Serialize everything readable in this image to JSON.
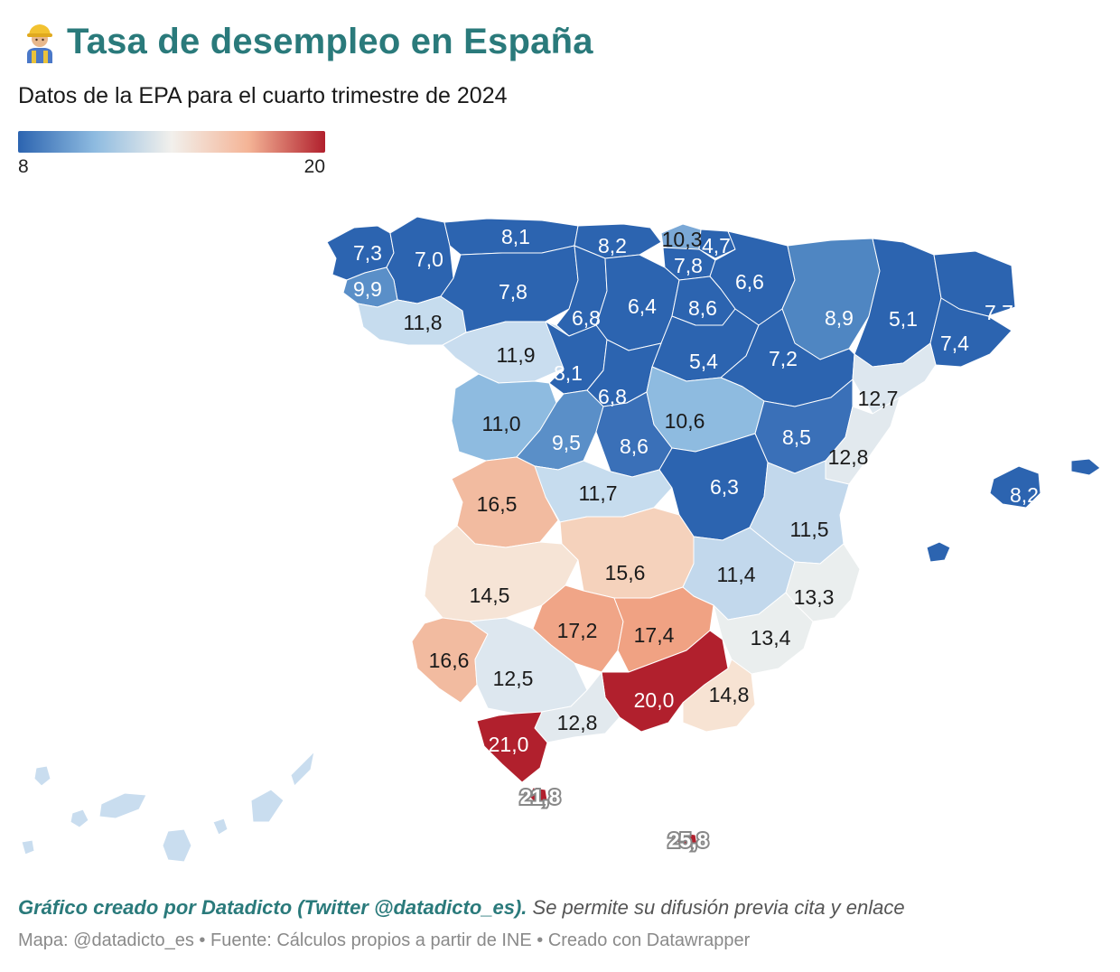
{
  "title": {
    "icon": "construction-worker-icon",
    "text": "Tasa de desempleo en España"
  },
  "subtitle": "Datos de la EPA para el cuarto trimestre de 2024",
  "legend": {
    "min_label": "8",
    "max_label": "20",
    "colors": [
      "#2c64b0",
      "#8ebbe0",
      "#f2f0ec",
      "#f4b496",
      "#b1202d"
    ]
  },
  "footer": {
    "credit": "Gráfico creado por Datadicto (Twitter @datadicto_es).",
    "note": " Se permite su difusión previa cita y enlace",
    "source": "Mapa: @datadicto_es • Fuente: Cálculos propios a partir de INE • Creado con Datawrapper"
  },
  "map_data": {
    "type": "choropleth",
    "scale": {
      "min": 8,
      "max": 20
    },
    "provinces": [
      {
        "id": "a-coruna",
        "value": "7,3",
        "color": "#2c64b0"
      },
      {
        "id": "lugo",
        "value": "7,0",
        "color": "#2c64b0"
      },
      {
        "id": "asturias",
        "value": "8,1",
        "color": "#2c64b0"
      },
      {
        "id": "cantabria",
        "value": "8,2",
        "color": "#2c64b0"
      },
      {
        "id": "bizkaia",
        "value": "10,3",
        "color": "#7aa8d6"
      },
      {
        "id": "gipuzkoa",
        "value": "4,7",
        "color": "#2c64b0"
      },
      {
        "id": "araba",
        "value": "7,8",
        "color": "#2c64b0"
      },
      {
        "id": "navarra",
        "value": "6,6",
        "color": "#2c64b0"
      },
      {
        "id": "pontevedra",
        "value": "9,9",
        "color": "#5a8fc8"
      },
      {
        "id": "ourense",
        "value": "11,8",
        "color": "#c6dcee"
      },
      {
        "id": "leon",
        "value": "7,8",
        "color": "#2c64b0"
      },
      {
        "id": "palencia",
        "value": "6,8",
        "color": "#2c64b0"
      },
      {
        "id": "burgos",
        "value": "6,4",
        "color": "#2c64b0"
      },
      {
        "id": "la-rioja",
        "value": "8,6",
        "color": "#2c64b0"
      },
      {
        "id": "huesca",
        "value": "8,9",
        "color": "#4f86c2"
      },
      {
        "id": "lleida",
        "value": "5,1",
        "color": "#2c64b0"
      },
      {
        "id": "girona",
        "value": "7,7",
        "color": "#2c64b0"
      },
      {
        "id": "barcelona",
        "value": "7,4",
        "color": "#2c64b0"
      },
      {
        "id": "zamora",
        "value": "11,9",
        "color": "#c9ddef"
      },
      {
        "id": "valladolid",
        "value": "8,1",
        "color": "#2c64b0"
      },
      {
        "id": "soria",
        "value": "5,4",
        "color": "#2c64b0"
      },
      {
        "id": "zaragoza",
        "value": "7,2",
        "color": "#2c64b0"
      },
      {
        "id": "tarragona",
        "value": "12,7",
        "color": "#dde7ef"
      },
      {
        "id": "segovia",
        "value": "6,8",
        "color": "#2c64b0"
      },
      {
        "id": "salamanca",
        "value": "11,0",
        "color": "#8ebbe0"
      },
      {
        "id": "avila",
        "value": "9,5",
        "color": "#5a8fc8"
      },
      {
        "id": "madrid",
        "value": "8,6",
        "color": "#3a70b8"
      },
      {
        "id": "guadalajara",
        "value": "10,6",
        "color": "#8ebbe0"
      },
      {
        "id": "teruel",
        "value": "8,5",
        "color": "#3a70b8"
      },
      {
        "id": "castellon",
        "value": "12,8",
        "color": "#e2e9ee"
      },
      {
        "id": "caceres",
        "value": "16,5",
        "color": "#f2bba0"
      },
      {
        "id": "toledo",
        "value": "11,7",
        "color": "#c6dcee"
      },
      {
        "id": "cuenca",
        "value": "6,3",
        "color": "#2c64b0"
      },
      {
        "id": "valencia",
        "value": "11,5",
        "color": "#c2d8ec"
      },
      {
        "id": "badajoz",
        "value": "14,5",
        "color": "#f6e4d6"
      },
      {
        "id": "ciudad-real",
        "value": "15,6",
        "color": "#f5d2bc"
      },
      {
        "id": "albacete",
        "value": "11,4",
        "color": "#c2d8ec"
      },
      {
        "id": "alicante",
        "value": "13,3",
        "color": "#eaeeee"
      },
      {
        "id": "cordoba",
        "value": "17,2",
        "color": "#f0a587"
      },
      {
        "id": "jaen",
        "value": "17,4",
        "color": "#f0a283"
      },
      {
        "id": "murcia",
        "value": "13,4",
        "color": "#eaeeee"
      },
      {
        "id": "huelva",
        "value": "16,6",
        "color": "#f2bba0"
      },
      {
        "id": "sevilla",
        "value": "12,5",
        "color": "#dde7ef"
      },
      {
        "id": "granada",
        "value": "20,0",
        "color": "#b1202d"
      },
      {
        "id": "almeria",
        "value": "14,8",
        "color": "#f7e3d3"
      },
      {
        "id": "malaga",
        "value": "12,8",
        "color": "#e2e9ee"
      },
      {
        "id": "cadiz",
        "value": "21,0",
        "color": "#b1202d"
      },
      {
        "id": "ceuta",
        "value": "21,8",
        "color": "#b1202d"
      },
      {
        "id": "melilla",
        "value": "25,8",
        "color": "#b1202d"
      },
      {
        "id": "baleares",
        "value": "8,2",
        "color": "#2c64b0"
      },
      {
        "id": "canarias",
        "value": "",
        "color": "#c9ddef"
      }
    ]
  }
}
